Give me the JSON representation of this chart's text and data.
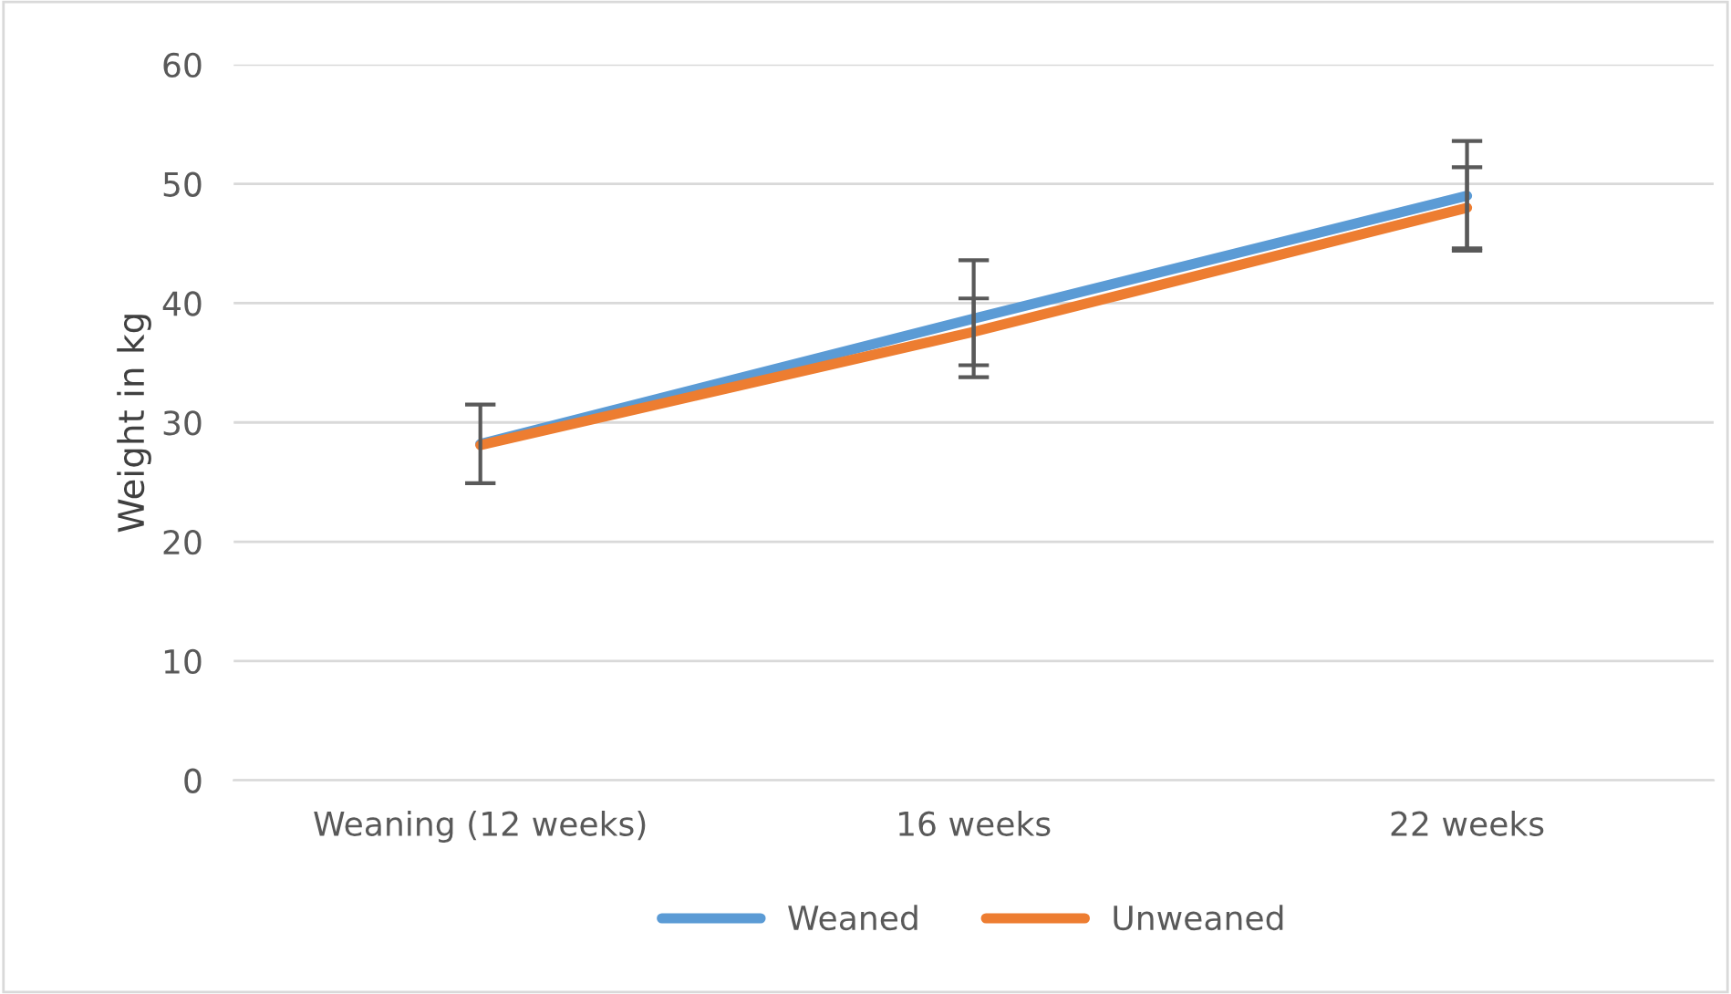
{
  "chart_data": {
    "type": "line",
    "ylabel": "Weight in kg",
    "categories": [
      "Weaning (12 weeks)",
      "16 weeks",
      "22 weeks"
    ],
    "series": [
      {
        "name": "Weaned",
        "color": "#5b9bd5",
        "values": [
          28.2,
          38.7,
          49.0
        ],
        "errors": [
          3.3,
          4.9,
          4.6
        ]
      },
      {
        "name": "Unweaned",
        "color": "#ed7d31",
        "values": [
          28.1,
          37.6,
          48.0
        ],
        "errors": [
          null,
          2.8,
          3.4
        ]
      }
    ],
    "ylim": [
      0,
      60
    ],
    "yticks": [
      0,
      10,
      20,
      30,
      40,
      50,
      60
    ],
    "grid": "y",
    "legend": "bottom",
    "marker": "none",
    "line_style": "solid"
  }
}
